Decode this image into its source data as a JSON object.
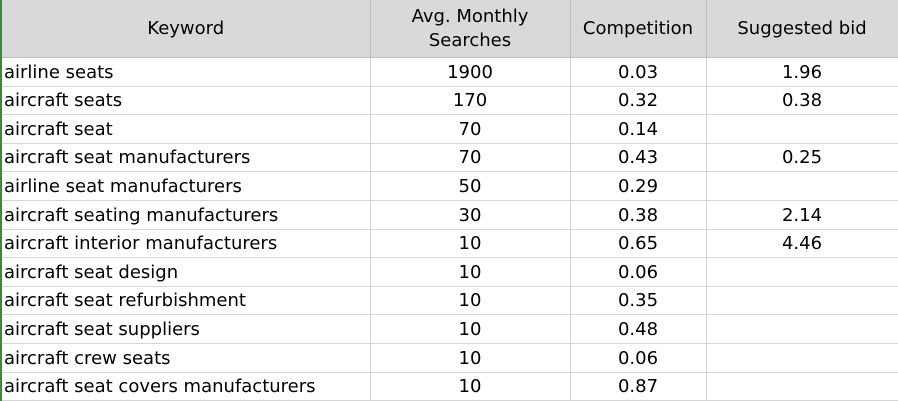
{
  "headers": {
    "keyword": "Keyword",
    "avg_line1": "Avg. Monthly",
    "avg_line2": "Searches",
    "competition": "Competition",
    "bid": "Suggested bid"
  },
  "rows": [
    {
      "keyword": "airline seats",
      "avg": "1900",
      "competition": "0.03",
      "bid": "1.96"
    },
    {
      "keyword": "aircraft seats",
      "avg": "170",
      "competition": "0.32",
      "bid": "0.38"
    },
    {
      "keyword": "aircraft seat",
      "avg": "70",
      "competition": "0.14",
      "bid": ""
    },
    {
      "keyword": "aircraft seat manufacturers",
      "avg": "70",
      "competition": "0.43",
      "bid": "0.25"
    },
    {
      "keyword": "airline seat manufacturers",
      "avg": "50",
      "competition": "0.29",
      "bid": ""
    },
    {
      "keyword": "aircraft seating manufacturers",
      "avg": "30",
      "competition": "0.38",
      "bid": "2.14"
    },
    {
      "keyword": "aircraft interior manufacturers",
      "avg": "10",
      "competition": "0.65",
      "bid": "4.46"
    },
    {
      "keyword": "aircraft seat design",
      "avg": "10",
      "competition": "0.06",
      "bid": ""
    },
    {
      "keyword": "aircraft seat refurbishment",
      "avg": "10",
      "competition": "0.35",
      "bid": ""
    },
    {
      "keyword": "aircraft seat suppliers",
      "avg": "10",
      "competition": "0.48",
      "bid": ""
    },
    {
      "keyword": "aircraft crew seats",
      "avg": "10",
      "competition": "0.06",
      "bid": ""
    },
    {
      "keyword": "aircraft seat covers manufacturers",
      "avg": "10",
      "competition": "0.87",
      "bid": ""
    }
  ]
}
